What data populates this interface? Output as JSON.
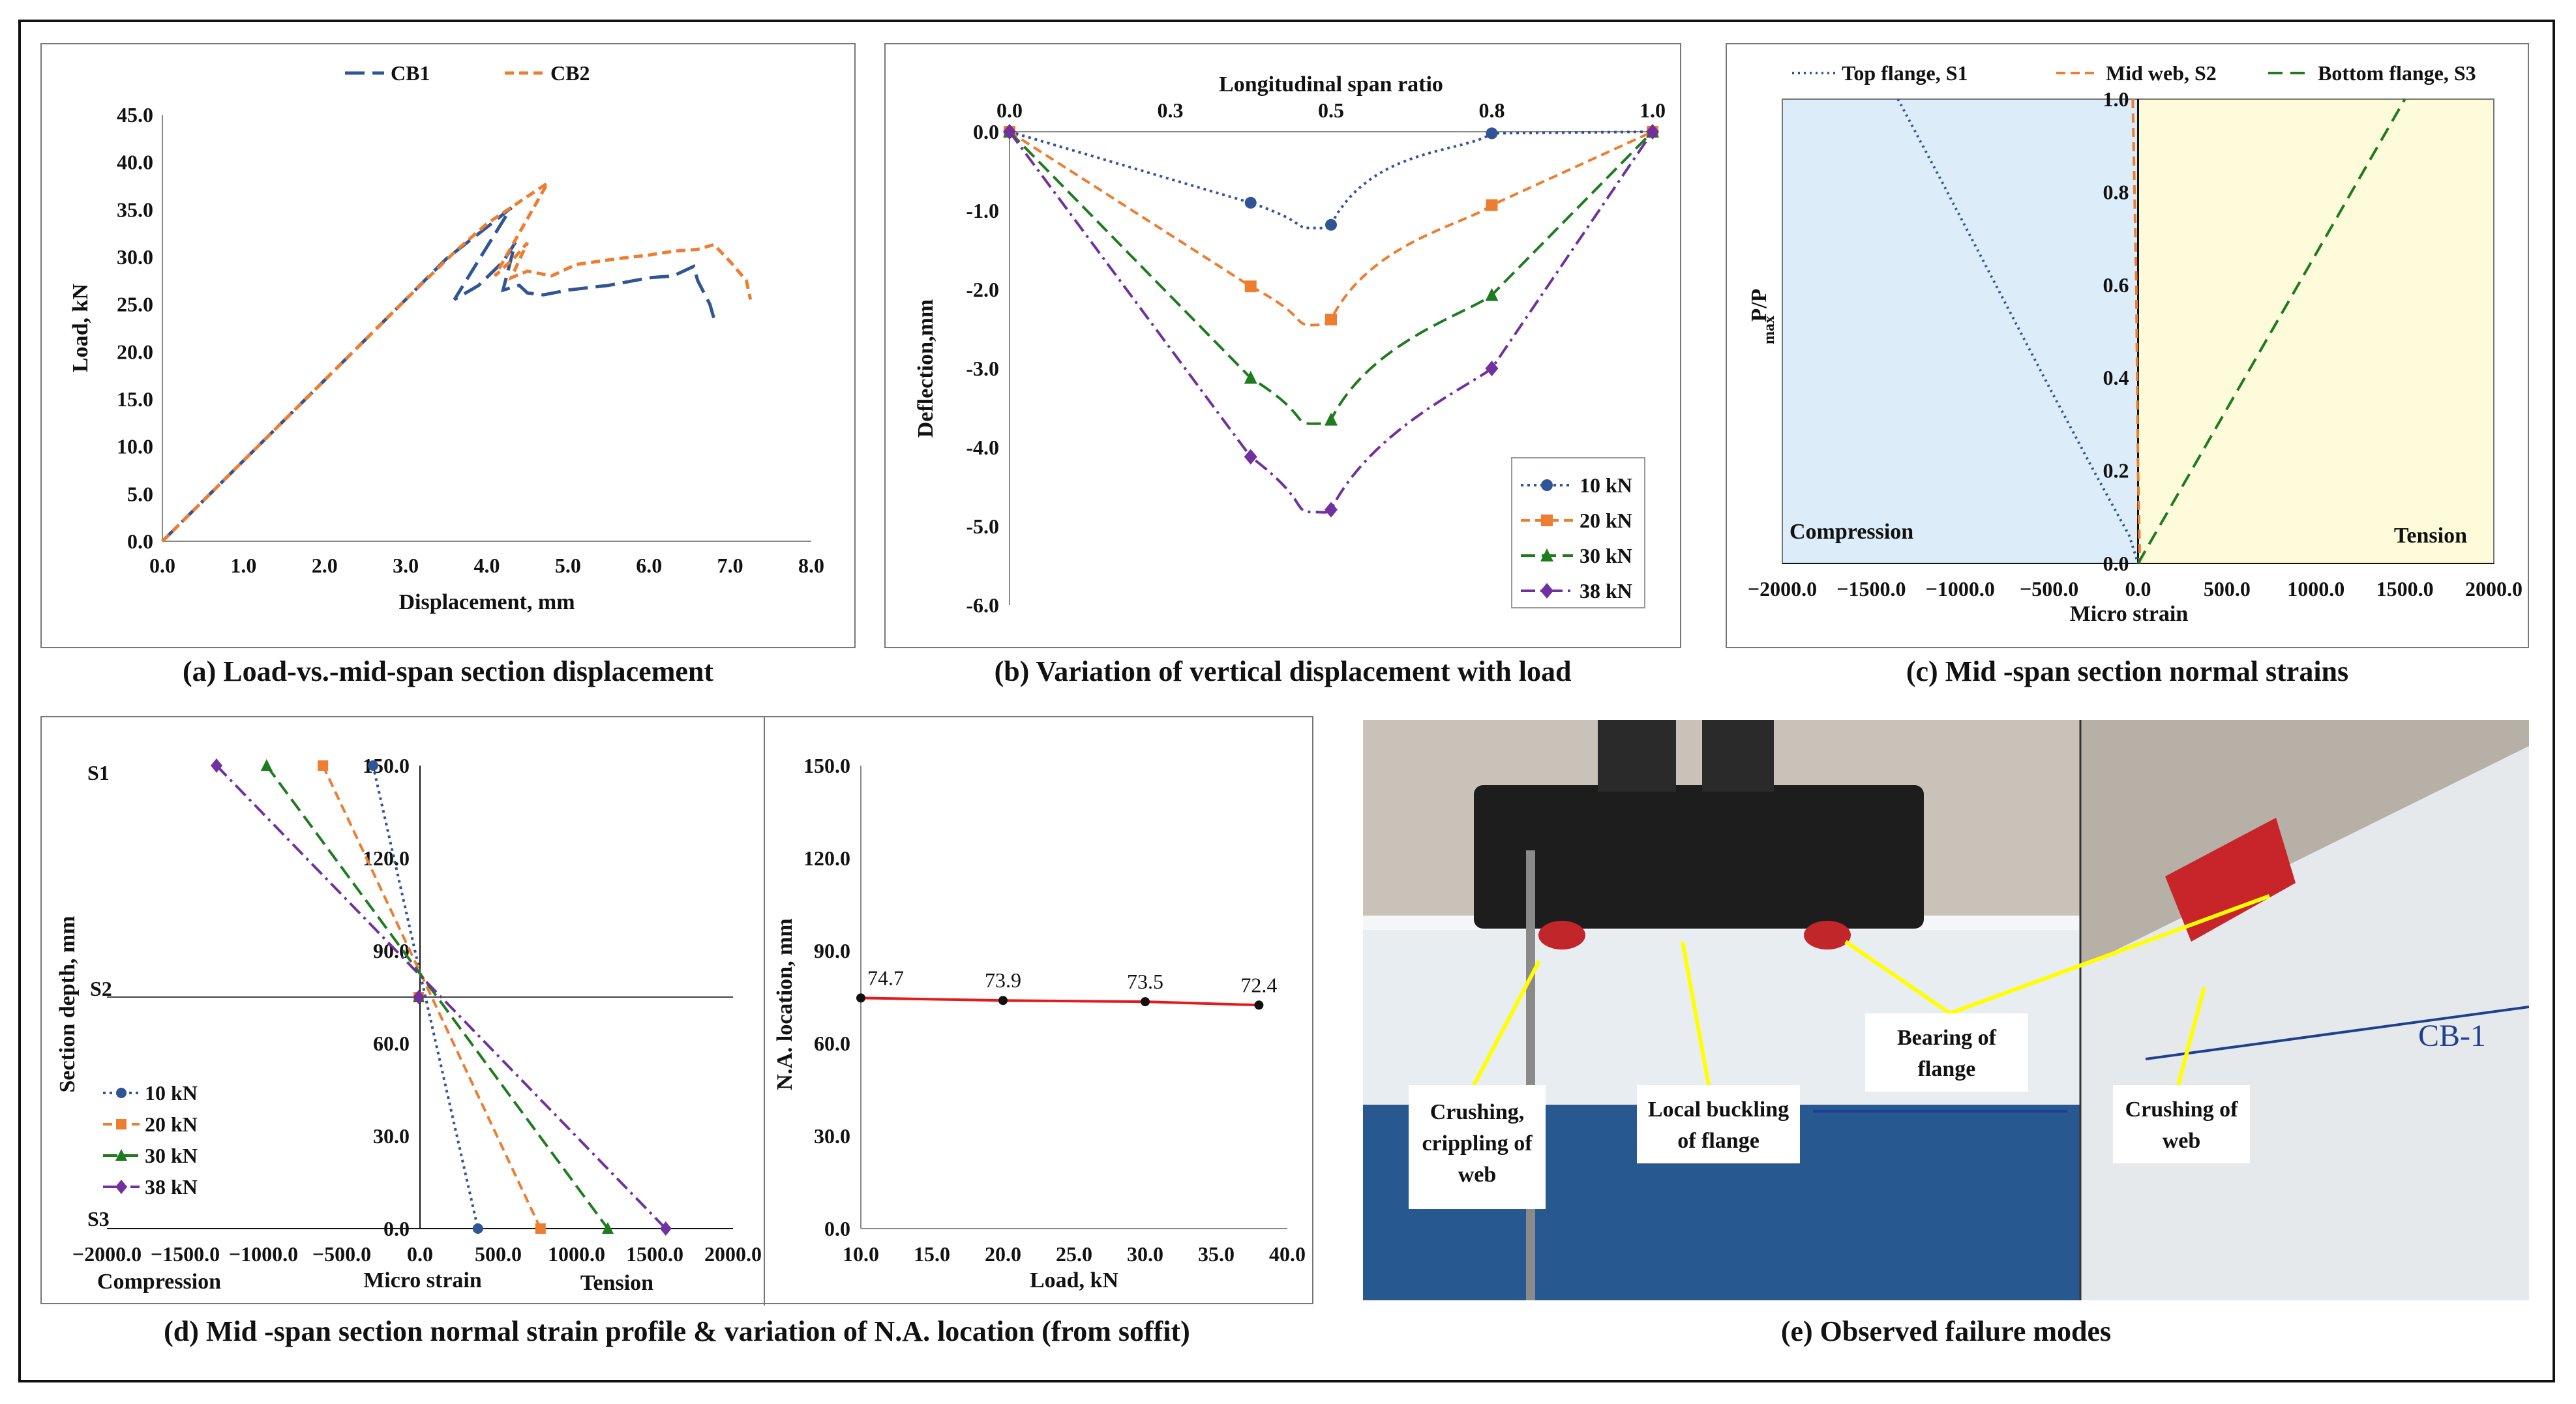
{
  "colors": {
    "blue": "#2f5597",
    "orange": "#ed7d31",
    "green": "#1e7b1e",
    "purple": "#7030a0",
    "red": "#e31a1c",
    "darkblue": "#1f3864",
    "compression_bg": "#dcecf8",
    "tension_bg": "#fdfbd9",
    "annot_line": "#ffff00"
  },
  "captions": {
    "a": "(a) Load-vs.-mid-span section displacement",
    "b": "(b) Variation of vertical displacement with load",
    "c": "(c) Mid -span section normal strains",
    "d": "(d) Mid -span section normal strain profile & variation of N.A. location (from soffit)",
    "e": "(e) Observed failure modes"
  },
  "chart_data": [
    {
      "id": "a",
      "type": "line",
      "title": "",
      "xlabel": "Displacement, mm",
      "ylabel": "Load, kN",
      "xlim": [
        0,
        8
      ],
      "ylim": [
        0,
        45
      ],
      "xticks": [
        "0.0",
        "1.0",
        "2.0",
        "3.0",
        "4.0",
        "5.0",
        "6.0",
        "7.0",
        "8.0"
      ],
      "yticks": [
        "0.0",
        "5.0",
        "10.0",
        "15.0",
        "20.0",
        "25.0",
        "30.0",
        "35.0",
        "40.0",
        "45.0"
      ],
      "legend": [
        "CB1",
        "CB2"
      ],
      "series": [
        {
          "name": "CB1",
          "x": [
            0,
            1,
            2,
            3,
            3.5,
            3.8,
            4.1,
            4.3,
            3.6,
            3.9,
            4.2,
            4.35,
            4.2,
            4.4,
            4.5,
            4.7,
            5.0,
            5.5,
            6.0,
            6.3,
            6.55,
            6.6,
            6.75,
            6.8
          ],
          "y": [
            0,
            8.5,
            17,
            25.5,
            29.8,
            31.8,
            33.8,
            35.2,
            25.5,
            27,
            29.5,
            31.5,
            26.5,
            27,
            26.2,
            26,
            26.5,
            27,
            27.8,
            28,
            29,
            27.5,
            25,
            23.5
          ]
        },
        {
          "name": "CB2",
          "x": [
            0,
            1,
            2,
            3,
            3.6,
            4.0,
            4.4,
            4.75,
            4.1,
            4.35,
            4.5,
            4.3,
            4.5,
            4.8,
            5.1,
            5.6,
            6.0,
            6.3,
            6.6,
            6.8,
            7.0,
            7.2,
            7.25
          ],
          "y": [
            0,
            8.5,
            17,
            25.5,
            30.5,
            33.5,
            35.8,
            37.8,
            28,
            30,
            31.5,
            27.8,
            28.5,
            28,
            29.2,
            29.8,
            30.2,
            30.6,
            30.8,
            31.3,
            29.5,
            27.5,
            25.5
          ]
        }
      ]
    },
    {
      "id": "b",
      "type": "line",
      "xlabel": "Longitudinal span ratio",
      "ylabel": "Deflection,mm",
      "xlim": [
        0,
        1
      ],
      "ylim": [
        -6,
        0
      ],
      "xticks": [
        "0.0",
        "0.3",
        "0.5",
        "0.8",
        "1.0"
      ],
      "xtick_values": [
        0,
        0.25,
        0.5,
        0.75,
        1.0
      ],
      "yticks": [
        "0.0",
        "-1.0",
        "-2.0",
        "-3.0",
        "-4.0",
        "-5.0",
        "-6.0"
      ],
      "legend": [
        "10 kN",
        "20 kN",
        "30 kN",
        "38 kN"
      ],
      "markers_x": [
        0,
        0.375,
        0.5,
        0.75,
        1.0
      ],
      "series": [
        {
          "name": "10 kN",
          "values": [
            0,
            -0.9,
            -1.18,
            -0.02,
            0
          ],
          "min": -1.22
        },
        {
          "name": "20 kN",
          "values": [
            0,
            -1.96,
            -2.38,
            -0.93,
            0
          ],
          "min": -2.45
        },
        {
          "name": "30 kN",
          "values": [
            0,
            -3.12,
            -3.65,
            -2.07,
            0
          ],
          "min": -3.7
        },
        {
          "name": "38 kN",
          "values": [
            0,
            -4.12,
            -4.79,
            -3.0,
            0
          ],
          "min": -4.82
        }
      ]
    },
    {
      "id": "c",
      "type": "line",
      "xlabel": "Micro strain",
      "ylabel": "P/P",
      "ylabel_sub": "max",
      "xlim": [
        -2000,
        2000
      ],
      "ylim": [
        0,
        1
      ],
      "xticks": [
        "−2000.0",
        "−1500.0",
        "−1000.0",
        "−500.0",
        "0.0",
        "500.0",
        "1000.0",
        "1500.0",
        "2000.0"
      ],
      "yticks": [
        "0.0",
        "0.2",
        "0.4",
        "0.6",
        "0.8",
        "1.0"
      ],
      "legend": [
        "Top flange, S1",
        "Mid web, S2",
        "Bottom flange, S3"
      ],
      "region_labels": [
        "Compression",
        "Tension"
      ],
      "series": [
        {
          "name": "Top flange, S1",
          "x": [
            -1350,
            -1100,
            -800,
            -500,
            -250,
            -50,
            0
          ],
          "y": [
            1.0,
            0.82,
            0.6,
            0.38,
            0.2,
            0.06,
            0
          ]
        },
        {
          "name": "Mid web, S2",
          "x": [
            -30,
            -10,
            0,
            10
          ],
          "y": [
            1.0,
            0.6,
            0.2,
            0
          ]
        },
        {
          "name": "Bottom flange, S3",
          "x": [
            0,
            1500
          ],
          "y": [
            0,
            1.0
          ]
        }
      ]
    },
    {
      "id": "d1",
      "type": "line",
      "xlabel": "Micro strain",
      "ylabel": "Section depth, mm",
      "xlim": [
        -2000,
        2000
      ],
      "ylim": [
        0,
        150
      ],
      "xticks": [
        "−2000.0",
        "−1500.0",
        "−1000.0",
        "−500.0",
        "0.0",
        "500.0",
        "1000.0",
        "1500.0",
        "2000.0"
      ],
      "yticks": [
        "0.0",
        "30.0",
        "60.0",
        "90.0",
        "120.0",
        "150.0"
      ],
      "section_labels": [
        "S1",
        "S2",
        "S3"
      ],
      "region_labels": [
        "Compression",
        "Tension"
      ],
      "legend": [
        "10 kN",
        "20 kN",
        "30 kN",
        "38 kN"
      ],
      "series": [
        {
          "name": "10 kN",
          "top": -300,
          "bottom": 370
        },
        {
          "name": "20 kN",
          "top": -620,
          "bottom": 770
        },
        {
          "name": "30 kN",
          "top": -980,
          "bottom": 1200
        },
        {
          "name": "38 kN",
          "top": -1300,
          "bottom": 1570
        }
      ]
    },
    {
      "id": "d2",
      "type": "line",
      "xlabel": "Load, kN",
      "ylabel": "N.A. location, mm",
      "xlim": [
        10,
        40
      ],
      "ylim": [
        0,
        150
      ],
      "xticks": [
        "10.0",
        "15.0",
        "20.0",
        "25.0",
        "30.0",
        "35.0",
        "40.0"
      ],
      "yticks": [
        "0.0",
        "30.0",
        "60.0",
        "90.0",
        "120.0",
        "150.0"
      ],
      "x": [
        10,
        20,
        30,
        38
      ],
      "values": [
        74.7,
        73.9,
        73.5,
        72.4
      ],
      "labels": [
        "74.7",
        "73.9",
        "73.5",
        "72.4"
      ]
    }
  ],
  "photo": {
    "annotations": [
      "Crushing,",
      "crippling of",
      "web",
      "Local buckling",
      "of flange",
      "Bearing of",
      "flange",
      "Crushing of",
      "web"
    ],
    "specimen_label": "CB-1"
  }
}
